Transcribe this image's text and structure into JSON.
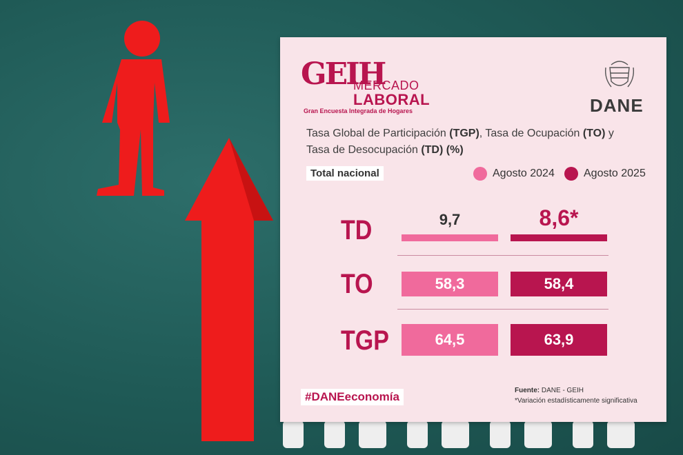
{
  "brand": {
    "logo_main": "GEIH",
    "logo_line1": "MERCADO",
    "logo_line2": "LABORAL",
    "logo_sub": "Gran Encuesta Integrada de Hogares",
    "agency": "DANE"
  },
  "subtitle": {
    "part1": "Tasa Global de Participación ",
    "tgp": "(TGP)",
    "part2": ", Tasa de Ocupación ",
    "to": "(TO)",
    "part3": " y",
    "part4": "Tasa de Desocupación ",
    "td": "(TD)",
    "part5": " (%)"
  },
  "scope": "Total nacional",
  "colors": {
    "light": "#f06a9c",
    "dark": "#b8154f",
    "accent": "#b8154f"
  },
  "chart_data": {
    "type": "bar",
    "categories": [
      "TD",
      "TO",
      "TGP"
    ],
    "series": [
      {
        "name": "Agosto 2024",
        "values": [
          9.7,
          58.3,
          64.5
        ],
        "labels": [
          "9,7",
          "58,3",
          "64,5"
        ]
      },
      {
        "name": "Agosto 2025",
        "values": [
          8.6,
          58.4,
          63.9
        ],
        "labels": [
          "8,6*",
          "58,4",
          "63,9"
        ]
      }
    ]
  },
  "hashtag": "#DANEeconomía",
  "source": {
    "label": "Fuente:",
    "text": " DANE - GEIH",
    "note": "*Variación estadísticamente significativa"
  }
}
